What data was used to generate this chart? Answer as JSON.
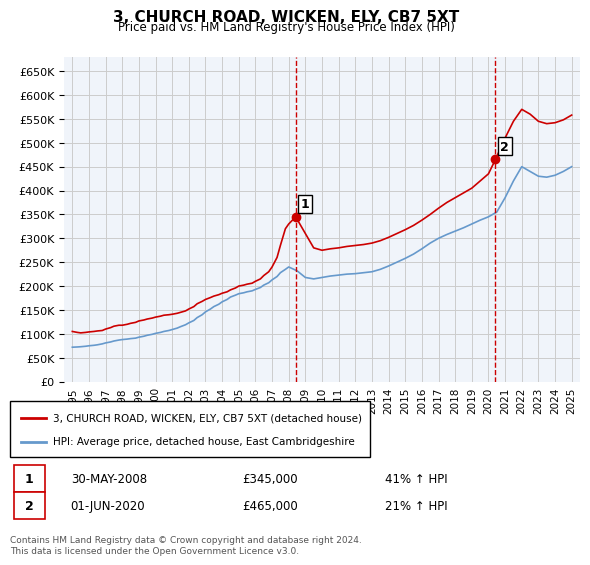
{
  "title": "3, CHURCH ROAD, WICKEN, ELY, CB7 5XT",
  "subtitle": "Price paid vs. HM Land Registry's House Price Index (HPI)",
  "ylabel_ticks": [
    0,
    50000,
    100000,
    150000,
    200000,
    250000,
    300000,
    350000,
    400000,
    450000,
    500000,
    550000,
    600000,
    650000
  ],
  "ylim": [
    0,
    680000
  ],
  "xlim": [
    1994.5,
    2025.5
  ],
  "x_ticks": [
    1995,
    1996,
    1997,
    1998,
    1999,
    2000,
    2001,
    2002,
    2003,
    2004,
    2005,
    2006,
    2007,
    2008,
    2009,
    2010,
    2011,
    2012,
    2013,
    2014,
    2015,
    2016,
    2017,
    2018,
    2019,
    2020,
    2021,
    2022,
    2023,
    2024,
    2025
  ],
  "red_line_color": "#cc0000",
  "blue_line_color": "#6699cc",
  "background_color": "#ffffff",
  "grid_color": "#cccccc",
  "vline_color": "#cc0000",
  "marker1_x": 2008.42,
  "marker1_y": 345000,
  "marker2_x": 2020.42,
  "marker2_y": 465000,
  "marker1_label": "30-MAY-2008",
  "marker1_price": "£345,000",
  "marker1_hpi": "41% ↑ HPI",
  "marker2_label": "01-JUN-2020",
  "marker2_price": "£465,000",
  "marker2_hpi": "21% ↑ HPI",
  "legend_line1": "3, CHURCH ROAD, WICKEN, ELY, CB7 5XT (detached house)",
  "legend_line2": "HPI: Average price, detached house, East Cambridgeshire",
  "footer": "Contains HM Land Registry data © Crown copyright and database right 2024.\nThis data is licensed under the Open Government Licence v3.0.",
  "red_data": {
    "years": [
      1995.0,
      1995.3,
      1995.5,
      1995.8,
      1996.0,
      1996.3,
      1996.5,
      1996.8,
      1997.0,
      1997.3,
      1997.5,
      1997.8,
      1998.0,
      1998.3,
      1998.5,
      1998.8,
      1999.0,
      1999.3,
      1999.5,
      1999.8,
      2000.0,
      2000.3,
      2000.5,
      2000.8,
      2001.0,
      2001.3,
      2001.5,
      2001.8,
      2002.0,
      2002.3,
      2002.5,
      2002.8,
      2003.0,
      2003.3,
      2003.5,
      2003.8,
      2004.0,
      2004.3,
      2004.5,
      2004.8,
      2005.0,
      2005.3,
      2005.5,
      2005.8,
      2006.0,
      2006.3,
      2006.5,
      2006.8,
      2007.0,
      2007.3,
      2007.5,
      2007.8,
      2008.0,
      2008.42,
      2009.0,
      2009.5,
      2010.0,
      2010.5,
      2011.0,
      2011.5,
      2012.0,
      2012.5,
      2013.0,
      2013.5,
      2014.0,
      2014.5,
      2015.0,
      2015.5,
      2016.0,
      2016.5,
      2017.0,
      2017.5,
      2018.0,
      2018.5,
      2019.0,
      2019.5,
      2020.0,
      2020.42,
      2021.0,
      2021.5,
      2022.0,
      2022.5,
      2023.0,
      2023.5,
      2024.0,
      2024.5,
      2025.0
    ],
    "values": [
      105000,
      103000,
      102000,
      103000,
      104000,
      105000,
      106000,
      107000,
      110000,
      113000,
      116000,
      118000,
      118000,
      120000,
      122000,
      124000,
      127000,
      129000,
      131000,
      133000,
      135000,
      137000,
      139000,
      140000,
      141000,
      143000,
      145000,
      148000,
      152000,
      157000,
      163000,
      168000,
      172000,
      176000,
      179000,
      182000,
      185000,
      188000,
      192000,
      196000,
      200000,
      202000,
      204000,
      206000,
      210000,
      215000,
      222000,
      230000,
      240000,
      260000,
      285000,
      320000,
      330000,
      345000,
      310000,
      280000,
      275000,
      278000,
      280000,
      283000,
      285000,
      287000,
      290000,
      295000,
      302000,
      310000,
      318000,
      327000,
      338000,
      350000,
      363000,
      375000,
      385000,
      395000,
      405000,
      420000,
      435000,
      465000,
      510000,
      545000,
      570000,
      560000,
      545000,
      540000,
      542000,
      548000,
      558000
    ]
  },
  "blue_data": {
    "years": [
      1995.0,
      1995.3,
      1995.5,
      1995.8,
      1996.0,
      1996.3,
      1996.5,
      1996.8,
      1997.0,
      1997.3,
      1997.5,
      1997.8,
      1998.0,
      1998.3,
      1998.5,
      1998.8,
      1999.0,
      1999.3,
      1999.5,
      1999.8,
      2000.0,
      2000.3,
      2000.5,
      2000.8,
      2001.0,
      2001.3,
      2001.5,
      2001.8,
      2002.0,
      2002.3,
      2002.5,
      2002.8,
      2003.0,
      2003.3,
      2003.5,
      2003.8,
      2004.0,
      2004.3,
      2004.5,
      2004.8,
      2005.0,
      2005.3,
      2005.5,
      2005.8,
      2006.0,
      2006.3,
      2006.5,
      2006.8,
      2007.0,
      2007.3,
      2007.5,
      2007.8,
      2008.0,
      2008.5,
      2009.0,
      2009.5,
      2010.0,
      2010.5,
      2011.0,
      2011.5,
      2012.0,
      2012.5,
      2013.0,
      2013.5,
      2014.0,
      2014.5,
      2015.0,
      2015.5,
      2016.0,
      2016.5,
      2017.0,
      2017.5,
      2018.0,
      2018.5,
      2019.0,
      2019.5,
      2020.0,
      2020.5,
      2021.0,
      2021.5,
      2022.0,
      2022.5,
      2023.0,
      2023.5,
      2024.0,
      2024.5,
      2025.0
    ],
    "values": [
      72000,
      72500,
      73000,
      74000,
      75000,
      76000,
      77000,
      79000,
      81000,
      83000,
      85000,
      87000,
      88000,
      89000,
      90000,
      91000,
      93000,
      95000,
      97000,
      99000,
      101000,
      103000,
      105000,
      107000,
      109000,
      112000,
      115000,
      119000,
      123000,
      128000,
      134000,
      140000,
      146000,
      152000,
      157000,
      162000,
      167000,
      172000,
      177000,
      181000,
      184000,
      186000,
      188000,
      190000,
      193000,
      197000,
      202000,
      207000,
      213000,
      220000,
      228000,
      235000,
      240000,
      232000,
      218000,
      215000,
      218000,
      221000,
      223000,
      225000,
      226000,
      228000,
      230000,
      235000,
      242000,
      250000,
      258000,
      267000,
      278000,
      290000,
      300000,
      308000,
      315000,
      322000,
      330000,
      338000,
      345000,
      355000,
      385000,
      420000,
      450000,
      440000,
      430000,
      428000,
      432000,
      440000,
      450000
    ]
  }
}
